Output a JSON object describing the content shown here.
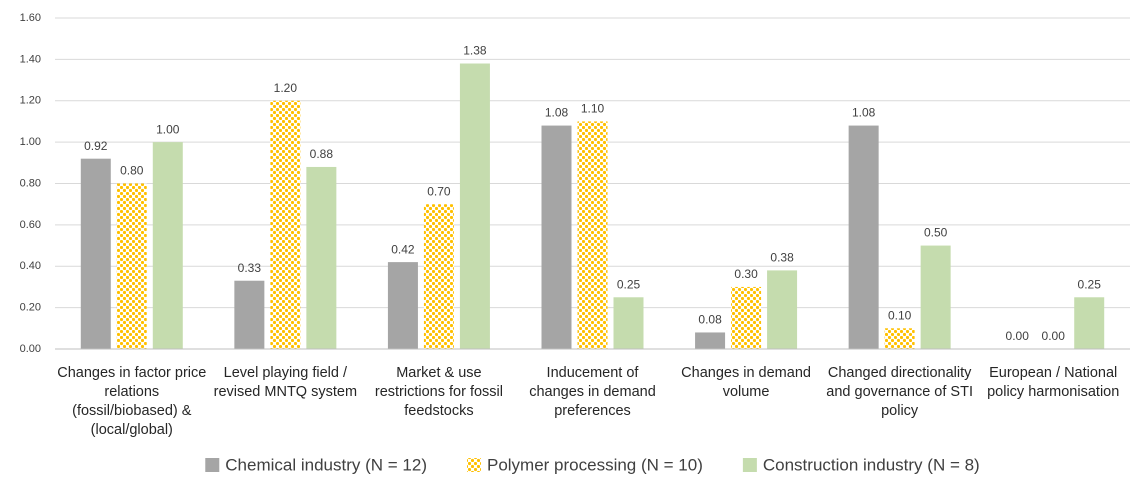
{
  "chart_data": {
    "type": "bar",
    "categories": [
      "Changes in factor price relations (fossil/biobased) & (local/global)",
      "Level playing field / revised MNTQ system",
      "Market & use restrictions for fossil feedstocks",
      "Inducement of changes in demand preferences",
      "Changes in demand volume",
      "Changed directionality and governance of STI policy",
      "European / National policy harmonisation"
    ],
    "series": [
      {
        "name": "Chemical industry (N = 12)",
        "color": "#a5a5a5",
        "pattern": "solid",
        "values": [
          0.92,
          0.33,
          0.42,
          1.08,
          0.08,
          1.08,
          0
        ],
        "value_labels": [
          "0.92",
          "0.33",
          "0.42",
          "1.08",
          "0.08",
          "1.08",
          "0.00"
        ]
      },
      {
        "name": "Polymer processing (N = 10)",
        "color": "#ffc000",
        "pattern": "dots",
        "values": [
          0.8,
          1.2,
          0.7,
          1.1,
          0.3,
          0.1,
          0
        ],
        "value_labels": [
          "0.80",
          "1.20",
          "0.70",
          "1.10",
          "0.30",
          "0.10",
          "0.00"
        ]
      },
      {
        "name": "Construction industry (N = 8)",
        "color": "#c5dcae",
        "pattern": "solid",
        "values": [
          1,
          0.88,
          1.38,
          0.25,
          0.38,
          0.5,
          0.25
        ],
        "value_labels": [
          "1.00",
          "0.88",
          "1.38",
          "0.25",
          "0.38",
          "0.50",
          "0.25"
        ]
      }
    ],
    "ylim": [
      0,
      1.6
    ],
    "yticks": [
      {
        "value": 0,
        "label": "0.00"
      },
      {
        "value": 0.2,
        "label": "0.20"
      },
      {
        "value": 0.4,
        "label": "0.40"
      },
      {
        "value": 0.6,
        "label": "0.60"
      },
      {
        "value": 0.8,
        "label": "0.80"
      },
      {
        "value": 1,
        "label": "1.00"
      },
      {
        "value": 1.2,
        "label": "1.20"
      },
      {
        "value": 1.4,
        "label": "1.40"
      },
      {
        "value": 1.6,
        "label": "1.60"
      }
    ],
    "grid": true,
    "legend": "bottom"
  }
}
